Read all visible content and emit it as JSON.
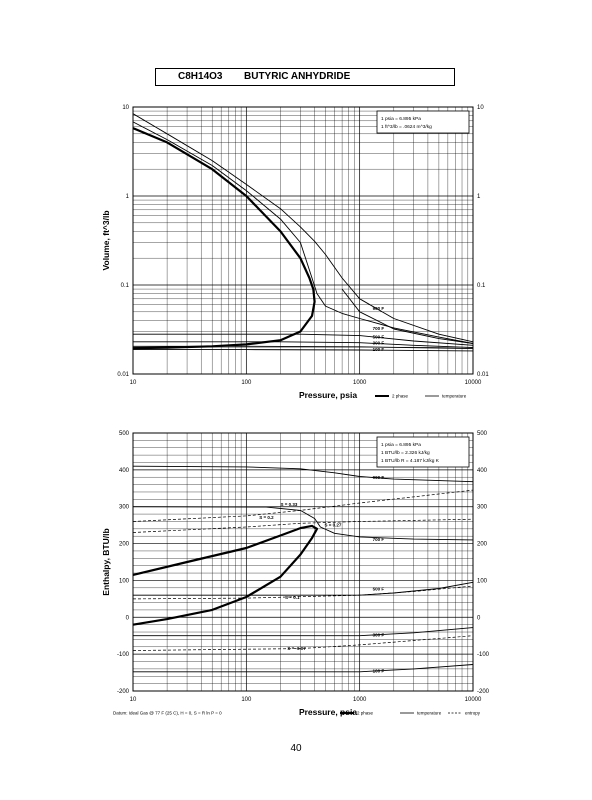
{
  "header": {
    "formula": "C8H14O3",
    "name": "BUTYRIC ANHYDRIDE"
  },
  "page_number": "40",
  "chart_data": [
    {
      "type": "line",
      "ylabel": "Volume, ft^3/lb",
      "xlabel": "Pressure,  psia",
      "x_scale": "log",
      "y_scale": "log",
      "xlim": [
        10,
        10000
      ],
      "ylim": [
        0.01,
        10
      ],
      "x_ticks": [
        "10",
        "100",
        "1000",
        "10000"
      ],
      "y_ticks_left": [
        "10",
        "1",
        "0.1",
        "0.01"
      ],
      "y_ticks_right": [
        "10",
        "1",
        "0.1",
        "0.01"
      ],
      "info_box": [
        "1 psia = 6.895 kPa",
        "1 ft^3/lb = .0624 m^3/kg"
      ],
      "legend": [
        {
          "label": "2 phase",
          "style": "thick"
        },
        {
          "label": "temperature",
          "style": "thin"
        }
      ],
      "series": [
        {
          "name": "2 phase",
          "style": "thick",
          "points": [
            [
              10,
              0.0195
            ],
            [
              20,
              0.0198
            ],
            [
              50,
              0.0205
            ],
            [
              100,
              0.0215
            ],
            [
              200,
              0.024
            ],
            [
              300,
              0.03
            ],
            [
              380,
              0.045
            ],
            [
              400,
              0.065
            ],
            [
              390,
              0.09
            ],
            [
              360,
              0.12
            ],
            [
              300,
              0.2
            ],
            [
              200,
              0.4
            ],
            [
              100,
              1.0
            ],
            [
              50,
              2.0
            ],
            [
              20,
              4.0
            ],
            [
              10,
              5.8
            ]
          ]
        },
        {
          "name": "",
          "style": "thin",
          "points": [
            [
              10,
              6.8
            ],
            [
              20,
              4.3
            ],
            [
              50,
              2.2
            ],
            [
              100,
              1.15
            ],
            [
              200,
              0.55
            ],
            [
              300,
              0.3
            ],
            [
              380,
              0.12
            ],
            [
              420,
              0.08
            ],
            [
              500,
              0.058
            ],
            [
              700,
              0.048
            ],
            [
              1000,
              0.042
            ],
            [
              2000,
              0.033
            ],
            [
              5000,
              0.026
            ],
            [
              10000,
              0.022
            ]
          ]
        },
        {
          "name": "",
          "style": "thin",
          "points": [
            [
              10,
              8.4
            ],
            [
              20,
              5.0
            ],
            [
              50,
              2.5
            ],
            [
              100,
              1.35
            ],
            [
              200,
              0.72
            ],
            [
              300,
              0.45
            ],
            [
              400,
              0.31
            ],
            [
              500,
              0.22
            ],
            [
              700,
              0.12
            ],
            [
              1000,
              0.07
            ],
            [
              2000,
              0.042
            ],
            [
              5000,
              0.028
            ],
            [
              10000,
              0.023
            ]
          ]
        },
        {
          "name": "100 F",
          "style": "thin",
          "points": [
            [
              10,
              0.0188
            ],
            [
              100,
              0.0188
            ],
            [
              1000,
              0.0186
            ],
            [
              10000,
              0.0182
            ]
          ]
        },
        {
          "name": "300 F",
          "style": "thin",
          "points": [
            [
              10,
              0.0205
            ],
            [
              100,
              0.0205
            ],
            [
              1000,
              0.0202
            ],
            [
              10000,
              0.0193
            ]
          ]
        },
        {
          "name": "500 F",
          "style": "thin",
          "points": [
            [
              10,
              0.023
            ],
            [
              200,
              0.023
            ],
            [
              1000,
              0.0225
            ],
            [
              3000,
              0.021
            ],
            [
              10000,
              0.0198
            ]
          ]
        },
        {
          "name": "700 F",
          "style": "thin",
          "points": [
            [
              10,
              0.028
            ],
            [
              300,
              0.028
            ],
            [
              1000,
              0.027
            ],
            [
              3000,
              0.0235
            ],
            [
              10000,
              0.021
            ]
          ]
        },
        {
          "name": "900 F",
          "style": "thin",
          "points": [
            [
              700,
              0.09
            ],
            [
              1000,
              0.05
            ],
            [
              2000,
              0.032
            ],
            [
              5000,
              0.025
            ],
            [
              10000,
              0.022
            ]
          ]
        }
      ],
      "labels": [
        {
          "text": "900 F",
          "x": 1300,
          "y": 0.055
        },
        {
          "text": "700 F",
          "x": 1300,
          "y": 0.033
        },
        {
          "text": "500 F",
          "x": 1300,
          "y": 0.0265
        },
        {
          "text": "300 F",
          "x": 1300,
          "y": 0.0225
        },
        {
          "text": "100 F",
          "x": 1300,
          "y": 0.019
        }
      ]
    },
    {
      "type": "line",
      "ylabel": "Enthalpy, BTU/lb",
      "xlabel": "Pressure,  psia",
      "x_scale": "log",
      "xlim": [
        10,
        10000
      ],
      "ylim": [
        -200,
        500
      ],
      "x_ticks": [
        "10",
        "100",
        "1000",
        "10000"
      ],
      "y_ticks_left": [
        "500",
        "400",
        "300",
        "200",
        "100",
        "0",
        "-100",
        "-200"
      ],
      "y_ticks_right": [
        "500",
        "400",
        "300",
        "200",
        "100",
        "0",
        "-100",
        "-200"
      ],
      "info_box": [
        "1 psia = 6.895 kPa",
        "1 BTU/lb = 2.326 kJ/kg",
        "1 BTU/lb R = 4.187 kJ/kg K"
      ],
      "footnote": "Datum: Ideal Gas @ 77 F (25 C),  H = 0,  S = R ln P = 0",
      "legend": [
        {
          "label": "2 phase",
          "style": "thick"
        },
        {
          "label": "temperature",
          "style": "thin"
        },
        {
          "label": "entropy",
          "style": "dashed"
        }
      ],
      "series": [
        {
          "name": "2 phase",
          "style": "thick",
          "points": [
            [
              10,
              115
            ],
            [
              30,
              150
            ],
            [
              100,
              188
            ],
            [
              200,
              222
            ],
            [
              300,
              242
            ],
            [
              380,
              248
            ],
            [
              420,
              240
            ],
            [
              380,
              215
            ],
            [
              300,
              170
            ],
            [
              200,
              110
            ],
            [
              100,
              55
            ],
            [
              50,
              20
            ],
            [
              20,
              -5
            ],
            [
              10,
              -20
            ]
          ]
        },
        {
          "name": "900 F",
          "style": "thin",
          "points": [
            [
              10,
              410
            ],
            [
              100,
              408
            ],
            [
              300,
              403
            ],
            [
              600,
              392
            ],
            [
              1000,
              382
            ],
            [
              2000,
              375
            ],
            [
              10000,
              368
            ]
          ]
        },
        {
          "name": "700 F",
          "style": "thin",
          "points": [
            [
              10,
              300
            ],
            [
              150,
              299
            ],
            [
              300,
              290
            ],
            [
              400,
              268
            ],
            [
              450,
              245
            ],
            [
              600,
              228
            ],
            [
              1000,
              218
            ],
            [
              3000,
              212
            ],
            [
              10000,
              210
            ]
          ]
        },
        {
          "name": "500 F",
          "style": "thin",
          "points": [
            [
              10,
              60
            ],
            [
              1000,
              60
            ],
            [
              2000,
              66
            ],
            [
              5000,
              78
            ],
            [
              10000,
              95
            ]
          ]
        },
        {
          "name": "300 F",
          "style": "thin",
          "points": [
            [
              10,
              -50
            ],
            [
              1000,
              -50
            ],
            [
              3000,
              -42
            ],
            [
              10000,
              -28
            ]
          ]
        },
        {
          "name": "100 F",
          "style": "thin",
          "points": [
            [
              10,
              -148
            ],
            [
              1000,
              -148
            ],
            [
              3000,
              -140
            ],
            [
              10000,
              -128
            ]
          ]
        },
        {
          "name": "S = 0.33",
          "style": "dashed",
          "points": [
            [
              10,
              260
            ],
            [
              100,
              275
            ],
            [
              300,
              290
            ],
            [
              1000,
              310
            ],
            [
              10000,
              345
            ]
          ]
        },
        {
          "name": "S = 0.27",
          "style": "dashed",
          "points": [
            [
              10,
              230
            ],
            [
              100,
              245
            ],
            [
              300,
              255
            ],
            [
              1000,
              260
            ],
            [
              3000,
              263
            ],
            [
              10000,
              266
            ]
          ]
        },
        {
          "name": "S = 0.1",
          "style": "dashed",
          "points": [
            [
              10,
              50
            ],
            [
              100,
              52
            ],
            [
              1000,
              60
            ],
            [
              3000,
              70
            ],
            [
              10000,
              85
            ]
          ]
        },
        {
          "name": "S = -0.07",
          "style": "dashed",
          "points": [
            [
              10,
              -90
            ],
            [
              300,
              -85
            ],
            [
              1000,
              -75
            ],
            [
              10000,
              -50
            ]
          ]
        }
      ],
      "labels": [
        {
          "text": "900 F",
          "x": 1300,
          "y": 380
        },
        {
          "text": "700 F",
          "x": 1300,
          "y": 213
        },
        {
          "text": "500 F",
          "x": 1300,
          "y": 78
        },
        {
          "text": "300 F",
          "x": 1300,
          "y": -47
        },
        {
          "text": "100 F",
          "x": 1300,
          "y": -144
        },
        {
          "text": "S = 0.33",
          "x": 200,
          "y": 308
        },
        {
          "text": "S = 0.2",
          "x": 130,
          "y": 272
        },
        {
          "text": "S = 0.27",
          "x": 490,
          "y": 252
        },
        {
          "text": "S = 0.1",
          "x": 220,
          "y": 55
        },
        {
          "text": "S = -0.07",
          "x": 230,
          "y": -83
        }
      ]
    }
  ]
}
